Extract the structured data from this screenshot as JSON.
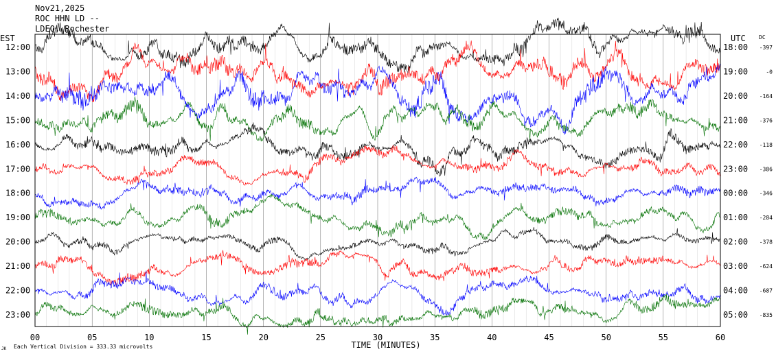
{
  "header": {
    "line1": "Nov21,2025",
    "line2": "ROC HHN LD --",
    "line3": "LDEO, Rochester"
  },
  "left_axis_label": "EST",
  "right_axis_label": "UTC",
  "dc_label": "DC",
  "footer": {
    "xlabel": "TIME (MINUTES)",
    "scale_note": "Each Vertical Division =  333.33 microvolts",
    "corner_mark": "JK"
  },
  "colors": {
    "trace_cycle": [
      "#000000",
      "#ff0000",
      "#0000ff",
      "#007000"
    ],
    "axis": "#000000",
    "grid": "#000000"
  },
  "chart_data": {
    "type": "line",
    "xlim": [
      0,
      60
    ],
    "xticks": [
      "00",
      "05",
      "10",
      "15",
      "20",
      "25",
      "30",
      "35",
      "40",
      "45",
      "50",
      "55",
      "60"
    ],
    "rows": [
      {
        "est": "12:00",
        "utc": "18:00",
        "dc": "-397",
        "amp": 0.7
      },
      {
        "est": "13:00",
        "utc": "19:00",
        "dc": "-0",
        "amp": 0.8
      },
      {
        "est": "14:00",
        "utc": "20:00",
        "dc": "-164",
        "amp": 0.9
      },
      {
        "est": "15:00",
        "utc": "21:00",
        "dc": "-376",
        "amp": 0.6
      },
      {
        "est": "16:00",
        "utc": "22:00",
        "dc": "-118",
        "amp": 0.55
      },
      {
        "est": "17:00",
        "utc": "23:00",
        "dc": "-386",
        "amp": 0.45
      },
      {
        "est": "18:00",
        "utc": "00:00",
        "dc": "-346",
        "amp": 0.45
      },
      {
        "est": "19:00",
        "utc": "01:00",
        "dc": "-284",
        "amp": 0.45
      },
      {
        "est": "20:00",
        "utc": "02:00",
        "dc": "-378",
        "amp": 0.35
      },
      {
        "est": "21:00",
        "utc": "03:00",
        "dc": "-624",
        "amp": 0.45
      },
      {
        "est": "22:00",
        "utc": "04:00",
        "dc": "-687",
        "amp": 0.45
      },
      {
        "est": "23:00",
        "utc": "05:00",
        "dc": "-835",
        "amp": 0.45
      }
    ]
  }
}
